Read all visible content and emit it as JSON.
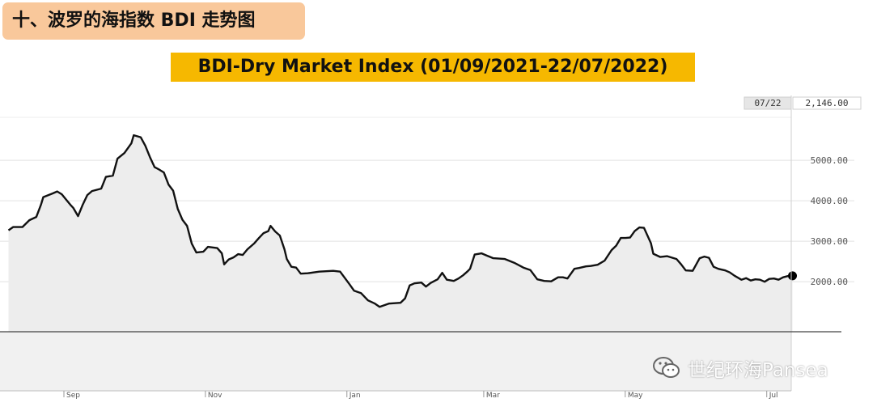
{
  "header": {
    "section_title": "十、波罗的海指数 BDI 走势图"
  },
  "watermark": {
    "text": "世纪环海Pansea",
    "icon": "wechat-icon"
  },
  "chart_data": {
    "type": "line",
    "title": "BDI-Dry Market Index (01/09/2021-22/07/2022)",
    "xlabel": "",
    "ylabel": "",
    "ylim": [
      800,
      6700
    ],
    "grid": true,
    "x_ticks": [
      {
        "label": "Sep",
        "day": 0
      },
      {
        "label": "Nov",
        "day": 61
      },
      {
        "label": "Jan",
        "day": 122
      },
      {
        "label": "Mar",
        "day": 181
      },
      {
        "label": "May",
        "day": 242
      },
      {
        "label": "Jul",
        "day": 303
      }
    ],
    "y_ticks": [
      {
        "label": "2000.00",
        "value": 2000
      },
      {
        "label": "3000.00",
        "value": 3000
      },
      {
        "label": "4000.00",
        "value": 4000
      },
      {
        "label": "5000.00",
        "value": 5000
      }
    ],
    "last_point": {
      "date_label": "07/22",
      "value_label": "2,146.00",
      "value": 2146
    },
    "series": [
      {
        "points": [
          [
            -26,
            3270
          ],
          [
            -24,
            3350
          ],
          [
            -20,
            3350
          ],
          [
            -17,
            3520
          ],
          [
            -14,
            3600
          ],
          [
            -12,
            3900
          ],
          [
            -11,
            4090
          ],
          [
            -7,
            4180
          ],
          [
            -5,
            4230
          ],
          [
            -3,
            4160
          ],
          [
            -1,
            4020
          ],
          [
            1,
            3880
          ],
          [
            2,
            3820
          ],
          [
            4,
            3620
          ],
          [
            6,
            3900
          ],
          [
            8,
            4140
          ],
          [
            10,
            4240
          ],
          [
            14,
            4300
          ],
          [
            16,
            4590
          ],
          [
            19,
            4620
          ],
          [
            21,
            5040
          ],
          [
            24,
            5180
          ],
          [
            27,
            5420
          ],
          [
            28,
            5620
          ],
          [
            31,
            5570
          ],
          [
            33,
            5360
          ],
          [
            35,
            5080
          ],
          [
            37,
            4830
          ],
          [
            39,
            4770
          ],
          [
            41,
            4700
          ],
          [
            43,
            4400
          ],
          [
            45,
            4250
          ],
          [
            47,
            3800
          ],
          [
            49,
            3530
          ],
          [
            51,
            3380
          ],
          [
            53,
            2940
          ],
          [
            55,
            2720
          ],
          [
            58,
            2740
          ],
          [
            60,
            2860
          ],
          [
            64,
            2830
          ],
          [
            66,
            2700
          ],
          [
            67,
            2430
          ],
          [
            69,
            2550
          ],
          [
            71,
            2600
          ],
          [
            73,
            2680
          ],
          [
            75,
            2660
          ],
          [
            77,
            2800
          ],
          [
            80,
            2950
          ],
          [
            82,
            3080
          ],
          [
            84,
            3200
          ],
          [
            86,
            3250
          ],
          [
            87,
            3380
          ],
          [
            89,
            3240
          ],
          [
            91,
            3140
          ],
          [
            93,
            2800
          ],
          [
            94,
            2560
          ],
          [
            96,
            2370
          ],
          [
            98,
            2350
          ],
          [
            100,
            2200
          ],
          [
            103,
            2210
          ],
          [
            108,
            2250
          ],
          [
            114,
            2270
          ],
          [
            117,
            2250
          ],
          [
            121,
            1940
          ],
          [
            123,
            1780
          ],
          [
            126,
            1720
          ],
          [
            129,
            1540
          ],
          [
            132,
            1460
          ],
          [
            134,
            1380
          ],
          [
            136,
            1420
          ],
          [
            138,
            1460
          ],
          [
            143,
            1480
          ],
          [
            145,
            1590
          ],
          [
            147,
            1910
          ],
          [
            149,
            1960
          ],
          [
            152,
            1980
          ],
          [
            154,
            1880
          ],
          [
            156,
            1970
          ],
          [
            159,
            2060
          ],
          [
            161,
            2220
          ],
          [
            163,
            2050
          ],
          [
            166,
            2020
          ],
          [
            168,
            2080
          ],
          [
            170,
            2160
          ],
          [
            172,
            2260
          ],
          [
            173,
            2320
          ],
          [
            175,
            2670
          ],
          [
            178,
            2700
          ],
          [
            180,
            2650
          ],
          [
            183,
            2580
          ],
          [
            188,
            2560
          ],
          [
            192,
            2470
          ],
          [
            196,
            2350
          ],
          [
            199,
            2290
          ],
          [
            202,
            2060
          ],
          [
            205,
            2020
          ],
          [
            208,
            2010
          ],
          [
            211,
            2110
          ],
          [
            213,
            2110
          ],
          [
            215,
            2080
          ],
          [
            218,
            2320
          ],
          [
            220,
            2340
          ],
          [
            223,
            2380
          ],
          [
            225,
            2390
          ],
          [
            228,
            2420
          ],
          [
            231,
            2520
          ],
          [
            234,
            2780
          ],
          [
            236,
            2890
          ],
          [
            238,
            3080
          ],
          [
            240,
            3080
          ],
          [
            242,
            3090
          ],
          [
            244,
            3250
          ],
          [
            246,
            3340
          ],
          [
            248,
            3330
          ],
          [
            251,
            2950
          ],
          [
            252,
            2690
          ],
          [
            255,
            2610
          ],
          [
            258,
            2630
          ],
          [
            262,
            2560
          ],
          [
            264,
            2430
          ],
          [
            266,
            2280
          ],
          [
            269,
            2270
          ],
          [
            272,
            2580
          ],
          [
            274,
            2620
          ],
          [
            276,
            2590
          ],
          [
            278,
            2370
          ],
          [
            280,
            2320
          ],
          [
            283,
            2280
          ],
          [
            285,
            2230
          ],
          [
            287,
            2150
          ],
          [
            290,
            2050
          ],
          [
            292,
            2090
          ],
          [
            294,
            2030
          ],
          [
            296,
            2060
          ],
          [
            298,
            2050
          ],
          [
            300,
            2000
          ],
          [
            302,
            2070
          ],
          [
            304,
            2080
          ],
          [
            306,
            2050
          ],
          [
            308,
            2110
          ],
          [
            310,
            2140
          ],
          [
            312,
            2146
          ]
        ]
      }
    ]
  }
}
